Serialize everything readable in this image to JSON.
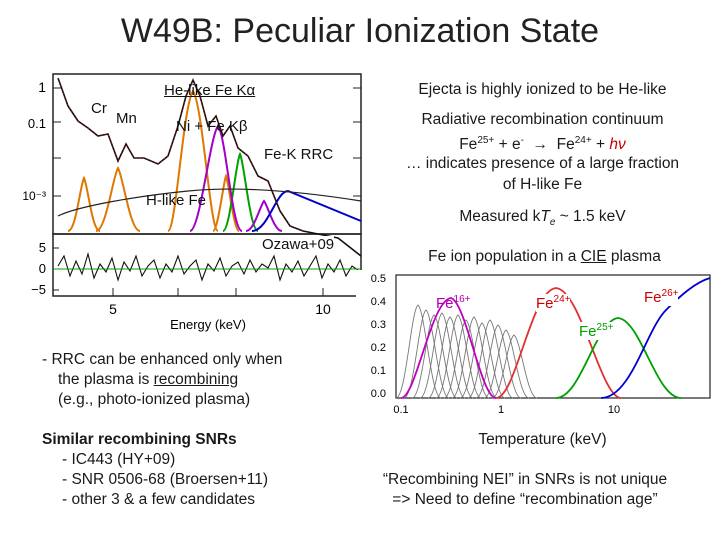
{
  "slide": {
    "title": "W49B: Peculiar Ionization State"
  },
  "spectrum_plot": {
    "line_labels": {
      "he_like_fe_ka": "He-like Fe Kα",
      "cr": "Cr",
      "mn": "Mn",
      "ni_fe_kb": "Ni + Fe Kβ",
      "fe_k_rrc": "Fe-K RRC",
      "h_like_fe": "H-like Fe",
      "citation": "Ozawa+09"
    },
    "y_ticks": [
      "1",
      "0.1",
      "10⁻³"
    ],
    "residual_ticks": [
      "5",
      "0",
      "−5"
    ],
    "x_ticks": [
      "5",
      "10"
    ],
    "xlabel": "Energy (keV)"
  },
  "right_text": {
    "ejecta": "Ejecta is highly ionized to be He-like",
    "rrc_title": "Radiative recombination continuum",
    "rrc_eq_fe25": "Fe",
    "rrc_eq_sup1": "25+",
    "rrc_eq_plus": " + e",
    "rrc_eq_sup2": "-",
    "rrc_eq_arrow": "  →  Fe",
    "rrc_eq_sup3": "24+",
    "rrc_eq_plus2": " + ",
    "rrc_eq_hnu": "hν",
    "rrc_line3": "… indicates presence of a large fraction",
    "rrc_line4": "of H-like Fe",
    "kte_pre": "Measured k",
    "kte_T": "T",
    "kte_sub": "e",
    "kte_post": " ~ 1.5 keV",
    "pop_pre": "Fe ion population in a ",
    "pop_cie": "CIE",
    "pop_post": " plasma"
  },
  "population_plot": {
    "labels": {
      "fe16": "Fe",
      "fe16_sup": "16+",
      "fe24": "Fe",
      "fe24_sup": "24+",
      "fe26": "Fe",
      "fe26_sup": "26+",
      "fe25": "Fe",
      "fe25_sup": "25+"
    },
    "y_ticks": [
      "0.5",
      "0.4",
      "0.3",
      "0.2",
      "0.1",
      "0.0"
    ],
    "x_ticks": [
      "0.1",
      "1",
      "10"
    ],
    "xlabel": "Temperature (keV)"
  },
  "left_text": {
    "rrc_line1": "- RRC can be enhanced only when",
    "rrc_line2_pre": "the plasma is ",
    "rrc_line2_ul": "recombining",
    "rrc_line3": "(e.g., photo-ionized plasma)",
    "similar_title": "Similar recombining SNRs",
    "similar_1": "- IC443 (HY+09)",
    "similar_2": "- SNR 0506-68 (Broersen+11)",
    "similar_3": "- other 3 & a few candidates"
  },
  "bottom_right": {
    "line1": "“Recombining NEI” in SNRs is not unique",
    "line2": "=> Need to define “recombination age”"
  },
  "colors": {
    "accent_red": "#cc0000",
    "curve_orange": "#e07800",
    "curve_green": "#00a000",
    "curve_purple": "#a000c8",
    "curve_blue": "#0000d0"
  }
}
